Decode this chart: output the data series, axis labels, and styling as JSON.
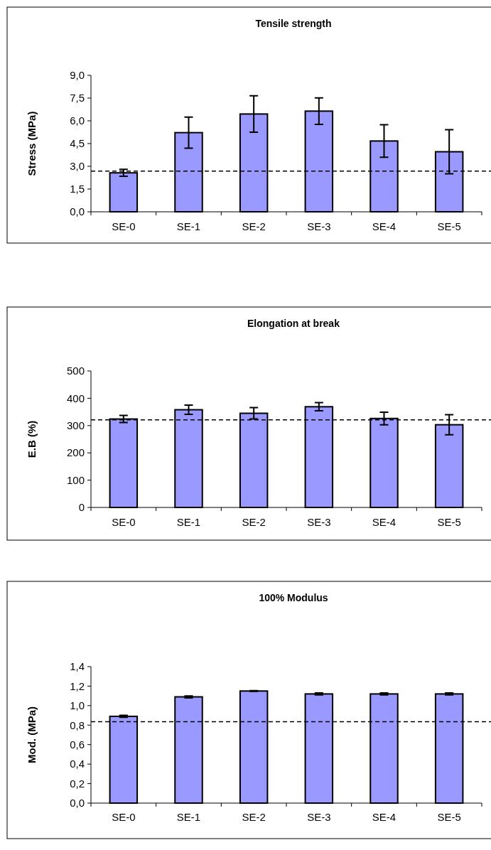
{
  "chart_data": [
    {
      "type": "bar",
      "title": "Tensile strength",
      "ylabel": "Stress (MPa)",
      "categories": [
        "SE-0",
        "SE-1",
        "SE-2",
        "SE-3",
        "SE-4",
        "SE-5"
      ],
      "values": [
        2.57,
        5.22,
        6.45,
        6.64,
        4.67,
        3.96
      ],
      "errors": [
        0.23,
        1.03,
        1.2,
        0.87,
        1.07,
        1.45
      ],
      "color": "#9999ff",
      "ylim": [
        0,
        9
      ],
      "yticks": [
        {
          "value": 0,
          "label": "0,0"
        },
        {
          "value": 1.5,
          "label": "1,5"
        },
        {
          "value": 3,
          "label": "3,0"
        },
        {
          "value": 4.5,
          "label": "4,5"
        },
        {
          "value": 6,
          "label": "6,0"
        },
        {
          "value": 7.5,
          "label": "7,5"
        },
        {
          "value": 9,
          "label": "9,0"
        }
      ],
      "ref_lines": [
        {
          "axis": "y",
          "value": 2.68,
          "line_style": "dashed",
          "color": "#000000"
        }
      ]
    },
    {
      "type": "bar",
      "title": "Elongation at break",
      "ylabel": "E.B (%)",
      "categories": [
        "SE-0",
        "SE-1",
        "SE-2",
        "SE-3",
        "SE-4",
        "SE-5"
      ],
      "values": [
        324,
        358,
        345,
        369,
        326,
        303
      ],
      "errors": [
        13,
        17,
        21,
        15,
        23,
        37
      ],
      "color": "#9999ff",
      "ylim": [
        0,
        500
      ],
      "yticks": [
        0,
        100,
        200,
        300,
        400,
        500
      ],
      "ref_lines": [
        {
          "axis": "y",
          "value": 321,
          "line_style": "dashed",
          "color": "#000000"
        }
      ]
    },
    {
      "type": "bar",
      "title": "100% Modulus",
      "ylabel": "Mod. (MPa)",
      "categories": [
        "SE-0",
        "SE-1",
        "SE-2",
        "SE-3",
        "SE-4",
        "SE-5"
      ],
      "values": [
        0.89,
        1.09,
        1.15,
        1.12,
        1.12,
        1.12
      ],
      "errors": [
        0.01,
        0.01,
        0.003,
        0.01,
        0.01,
        0.01
      ],
      "color": "#9999ff",
      "ylim": [
        0,
        1.4
      ],
      "yticks": [
        {
          "value": 0,
          "label": "0,0"
        },
        {
          "value": 0.2,
          "label": "0,2"
        },
        {
          "value": 0.4,
          "label": "0,4"
        },
        {
          "value": 0.6,
          "label": "0,6"
        },
        {
          "value": 0.8,
          "label": "0,8"
        },
        {
          "value": 1,
          "label": "1,0"
        },
        {
          "value": 1.2,
          "label": "1,2"
        },
        {
          "value": 1.4,
          "label": "1,4"
        }
      ],
      "ref_lines": [
        {
          "axis": "y",
          "value": 0.834,
          "line_style": "dashed",
          "color": "#000000"
        }
      ]
    }
  ]
}
